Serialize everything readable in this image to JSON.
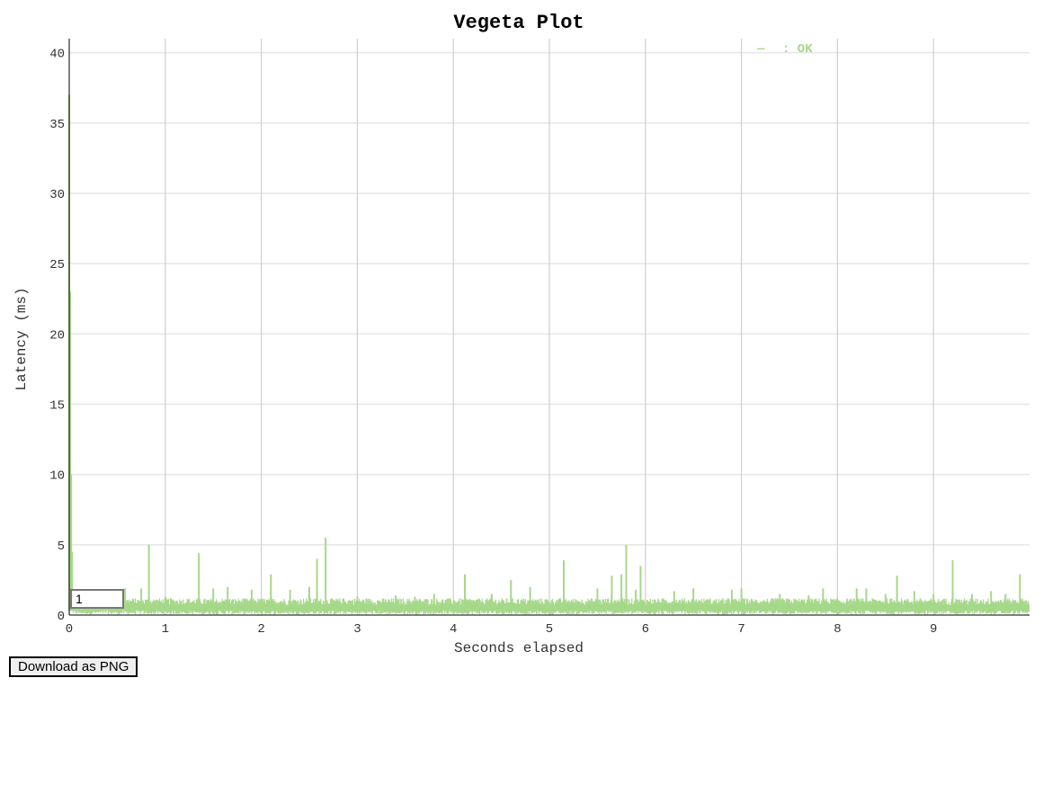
{
  "chart_data": {
    "type": "line",
    "title": "Vegeta Plot",
    "xlabel": "Seconds elapsed",
    "ylabel": "Latency (ms)",
    "xlim": [
      0,
      10
    ],
    "ylim": [
      0,
      41
    ],
    "x_ticks": [
      0,
      1,
      2,
      3,
      4,
      5,
      6,
      7,
      8,
      9
    ],
    "y_ticks": [
      0,
      5,
      10,
      15,
      20,
      25,
      30,
      35,
      40
    ],
    "grid": true,
    "legend_position": "top-right",
    "series": [
      {
        "name": "OK",
        "color": "#a6d88a",
        "baseline_ms": 0.9,
        "spikes": [
          [
            0.0,
            37.0
          ],
          [
            0.01,
            23.0
          ],
          [
            0.02,
            10.0
          ],
          [
            0.03,
            4.5
          ],
          [
            0.58,
            1.9
          ],
          [
            0.75,
            1.9
          ],
          [
            0.83,
            5.0
          ],
          [
            1.0,
            1.3
          ],
          [
            1.35,
            4.4
          ],
          [
            1.5,
            1.9
          ],
          [
            1.65,
            2.0
          ],
          [
            1.9,
            1.8
          ],
          [
            2.1,
            2.9
          ],
          [
            2.3,
            1.8
          ],
          [
            2.5,
            2.0
          ],
          [
            2.58,
            4.0
          ],
          [
            2.67,
            5.5
          ],
          [
            3.0,
            1.3
          ],
          [
            3.4,
            1.4
          ],
          [
            3.6,
            1.3
          ],
          [
            3.8,
            1.5
          ],
          [
            4.12,
            2.9
          ],
          [
            4.4,
            1.5
          ],
          [
            4.6,
            2.5
          ],
          [
            4.8,
            2.0
          ],
          [
            5.15,
            3.9
          ],
          [
            5.5,
            1.9
          ],
          [
            5.65,
            2.8
          ],
          [
            5.75,
            2.9
          ],
          [
            5.8,
            5.0
          ],
          [
            5.9,
            1.8
          ],
          [
            5.95,
            3.5
          ],
          [
            6.3,
            1.7
          ],
          [
            6.5,
            1.9
          ],
          [
            6.9,
            1.8
          ],
          [
            7.0,
            1.9
          ],
          [
            7.4,
            1.5
          ],
          [
            7.7,
            1.4
          ],
          [
            7.85,
            1.9
          ],
          [
            8.2,
            1.9
          ],
          [
            8.3,
            1.9
          ],
          [
            8.5,
            1.5
          ],
          [
            8.62,
            2.8
          ],
          [
            8.8,
            1.7
          ],
          [
            9.0,
            1.5
          ],
          [
            9.2,
            3.9
          ],
          [
            9.4,
            1.5
          ],
          [
            9.6,
            1.7
          ],
          [
            9.75,
            1.5
          ],
          [
            9.9,
            2.9
          ]
        ]
      }
    ]
  },
  "legend": {
    "marker": "—",
    "label": ": OK"
  },
  "controls": {
    "roll_period": "1",
    "download_label": "Download as PNG"
  }
}
